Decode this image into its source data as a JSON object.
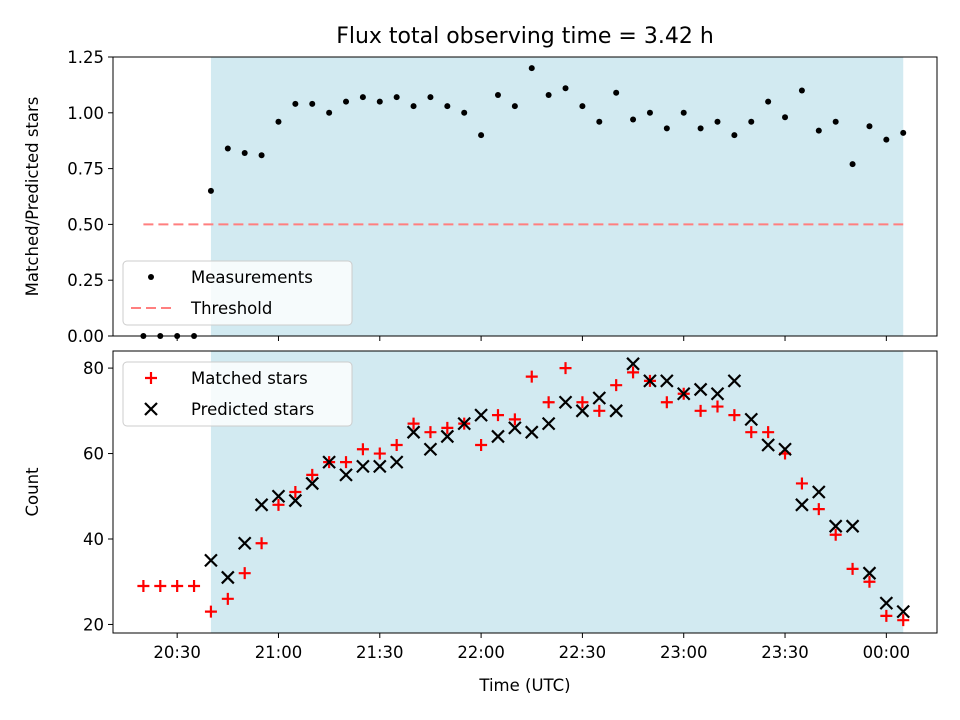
{
  "title": "Flux total observing time = 3.42 h",
  "colors": {
    "shade": "#add8e6",
    "measurement": "#000000",
    "threshold": "#ff7f7f",
    "matched": "#ff0000",
    "predicted": "#000000"
  },
  "chart_data": [
    {
      "type": "scatter",
      "ylabel": "Matched/Predicted stars",
      "ylim": [
        0,
        1.25
      ],
      "yticks": [
        0.0,
        0.25,
        0.5,
        0.75,
        1.0,
        1.25
      ],
      "ytick_labels": [
        "0.00",
        "0.25",
        "0.50",
        "0.75",
        "1.00",
        "1.25"
      ],
      "xlim": [
        "20:11",
        "00:15"
      ],
      "shaded_span": [
        "20:40",
        "00:05"
      ],
      "legend": {
        "position": "lower-left",
        "entries": [
          "Measurements",
          "Threshold"
        ]
      },
      "series": [
        {
          "name": "Measurements",
          "marker": "dot",
          "points": [
            [
              "20:20",
              0.0
            ],
            [
              "20:25",
              0.0
            ],
            [
              "20:30",
              0.0
            ],
            [
              "20:35",
              0.0
            ],
            [
              "20:40",
              0.65
            ],
            [
              "20:45",
              0.84
            ],
            [
              "20:50",
              0.82
            ],
            [
              "20:55",
              0.81
            ],
            [
              "21:00",
              0.96
            ],
            [
              "21:05",
              1.04
            ],
            [
              "21:10",
              1.04
            ],
            [
              "21:15",
              1.0
            ],
            [
              "21:20",
              1.05
            ],
            [
              "21:25",
              1.07
            ],
            [
              "21:30",
              1.05
            ],
            [
              "21:35",
              1.07
            ],
            [
              "21:40",
              1.03
            ],
            [
              "21:45",
              1.07
            ],
            [
              "21:50",
              1.03
            ],
            [
              "21:55",
              1.0
            ],
            [
              "22:00",
              0.9
            ],
            [
              "22:05",
              1.08
            ],
            [
              "22:10",
              1.03
            ],
            [
              "22:15",
              1.2
            ],
            [
              "22:20",
              1.08
            ],
            [
              "22:25",
              1.11
            ],
            [
              "22:30",
              1.03
            ],
            [
              "22:35",
              0.96
            ],
            [
              "22:40",
              1.09
            ],
            [
              "22:45",
              0.97
            ],
            [
              "22:50",
              1.0
            ],
            [
              "22:55",
              0.93
            ],
            [
              "23:00",
              1.0
            ],
            [
              "23:05",
              0.93
            ],
            [
              "23:10",
              0.96
            ],
            [
              "23:15",
              0.9
            ],
            [
              "23:20",
              0.96
            ],
            [
              "23:25",
              1.05
            ],
            [
              "23:30",
              0.98
            ],
            [
              "23:35",
              1.1
            ],
            [
              "23:40",
              0.92
            ],
            [
              "23:45",
              0.96
            ],
            [
              "23:50",
              0.77
            ],
            [
              "23:55",
              0.94
            ],
            [
              "00:00",
              0.88
            ],
            [
              "00:05",
              0.91
            ]
          ]
        },
        {
          "name": "Threshold",
          "marker": "dashed-line",
          "points": [
            [
              "20:20",
              0.5
            ],
            [
              "00:05",
              0.5
            ]
          ]
        }
      ]
    },
    {
      "type": "scatter",
      "xlabel": "Time (UTC)",
      "ylabel": "Count",
      "ylim": [
        18,
        84
      ],
      "yticks": [
        20,
        40,
        60,
        80
      ],
      "ytick_labels": [
        "20",
        "40",
        "60",
        "80"
      ],
      "xlim": [
        "20:11",
        "00:15"
      ],
      "xticks": [
        "20:30",
        "21:00",
        "21:30",
        "22:00",
        "22:30",
        "23:00",
        "23:30",
        "00:00"
      ],
      "xtick_labels": [
        "20:30",
        "21:00",
        "21:30",
        "22:00",
        "22:30",
        "23:00",
        "23:30",
        "00:00"
      ],
      "shaded_span": [
        "20:40",
        "00:05"
      ],
      "legend": {
        "position": "upper-left",
        "entries": [
          "Matched stars",
          "Predicted stars"
        ]
      },
      "series": [
        {
          "name": "Matched stars",
          "marker": "plus",
          "points": [
            [
              "20:20",
              29
            ],
            [
              "20:25",
              29
            ],
            [
              "20:30",
              29
            ],
            [
              "20:35",
              29
            ],
            [
              "20:40",
              23
            ],
            [
              "20:45",
              26
            ],
            [
              "20:50",
              32
            ],
            [
              "20:55",
              39
            ],
            [
              "21:00",
              48
            ],
            [
              "21:05",
              51
            ],
            [
              "21:10",
              55
            ],
            [
              "21:15",
              58
            ],
            [
              "21:20",
              58
            ],
            [
              "21:25",
              61
            ],
            [
              "21:30",
              60
            ],
            [
              "21:35",
              62
            ],
            [
              "21:40",
              67
            ],
            [
              "21:45",
              65
            ],
            [
              "21:50",
              66
            ],
            [
              "21:55",
              67
            ],
            [
              "22:00",
              62
            ],
            [
              "22:05",
              69
            ],
            [
              "22:10",
              68
            ],
            [
              "22:15",
              78
            ],
            [
              "22:20",
              72
            ],
            [
              "22:25",
              80
            ],
            [
              "22:30",
              72
            ],
            [
              "22:35",
              70
            ],
            [
              "22:40",
              76
            ],
            [
              "22:45",
              79
            ],
            [
              "22:50",
              77
            ],
            [
              "22:55",
              72
            ],
            [
              "23:00",
              74
            ],
            [
              "23:05",
              70
            ],
            [
              "23:10",
              71
            ],
            [
              "23:15",
              69
            ],
            [
              "23:20",
              65
            ],
            [
              "23:25",
              65
            ],
            [
              "23:30",
              60
            ],
            [
              "23:35",
              53
            ],
            [
              "23:40",
              47
            ],
            [
              "23:45",
              41
            ],
            [
              "23:50",
              33
            ],
            [
              "23:55",
              30
            ],
            [
              "00:00",
              22
            ],
            [
              "00:05",
              21
            ]
          ]
        },
        {
          "name": "Predicted stars",
          "marker": "x",
          "points": [
            [
              "20:40",
              35
            ],
            [
              "20:45",
              31
            ],
            [
              "20:50",
              39
            ],
            [
              "20:55",
              48
            ],
            [
              "21:00",
              50
            ],
            [
              "21:05",
              49
            ],
            [
              "21:10",
              53
            ],
            [
              "21:15",
              58
            ],
            [
              "21:20",
              55
            ],
            [
              "21:25",
              57
            ],
            [
              "21:30",
              57
            ],
            [
              "21:35",
              58
            ],
            [
              "21:40",
              65
            ],
            [
              "21:45",
              61
            ],
            [
              "21:50",
              64
            ],
            [
              "21:55",
              67
            ],
            [
              "22:00",
              69
            ],
            [
              "22:05",
              64
            ],
            [
              "22:10",
              66
            ],
            [
              "22:15",
              65
            ],
            [
              "22:20",
              67
            ],
            [
              "22:25",
              72
            ],
            [
              "22:30",
              70
            ],
            [
              "22:35",
              73
            ],
            [
              "22:40",
              70
            ],
            [
              "22:45",
              81
            ],
            [
              "22:50",
              77
            ],
            [
              "22:55",
              77
            ],
            [
              "23:00",
              74
            ],
            [
              "23:05",
              75
            ],
            [
              "23:10",
              74
            ],
            [
              "23:15",
              77
            ],
            [
              "23:20",
              68
            ],
            [
              "23:25",
              62
            ],
            [
              "23:30",
              61
            ],
            [
              "23:35",
              48
            ],
            [
              "23:40",
              51
            ],
            [
              "23:45",
              43
            ],
            [
              "23:50",
              43
            ],
            [
              "23:55",
              32
            ],
            [
              "00:00",
              25
            ],
            [
              "00:05",
              23
            ]
          ]
        }
      ]
    }
  ]
}
